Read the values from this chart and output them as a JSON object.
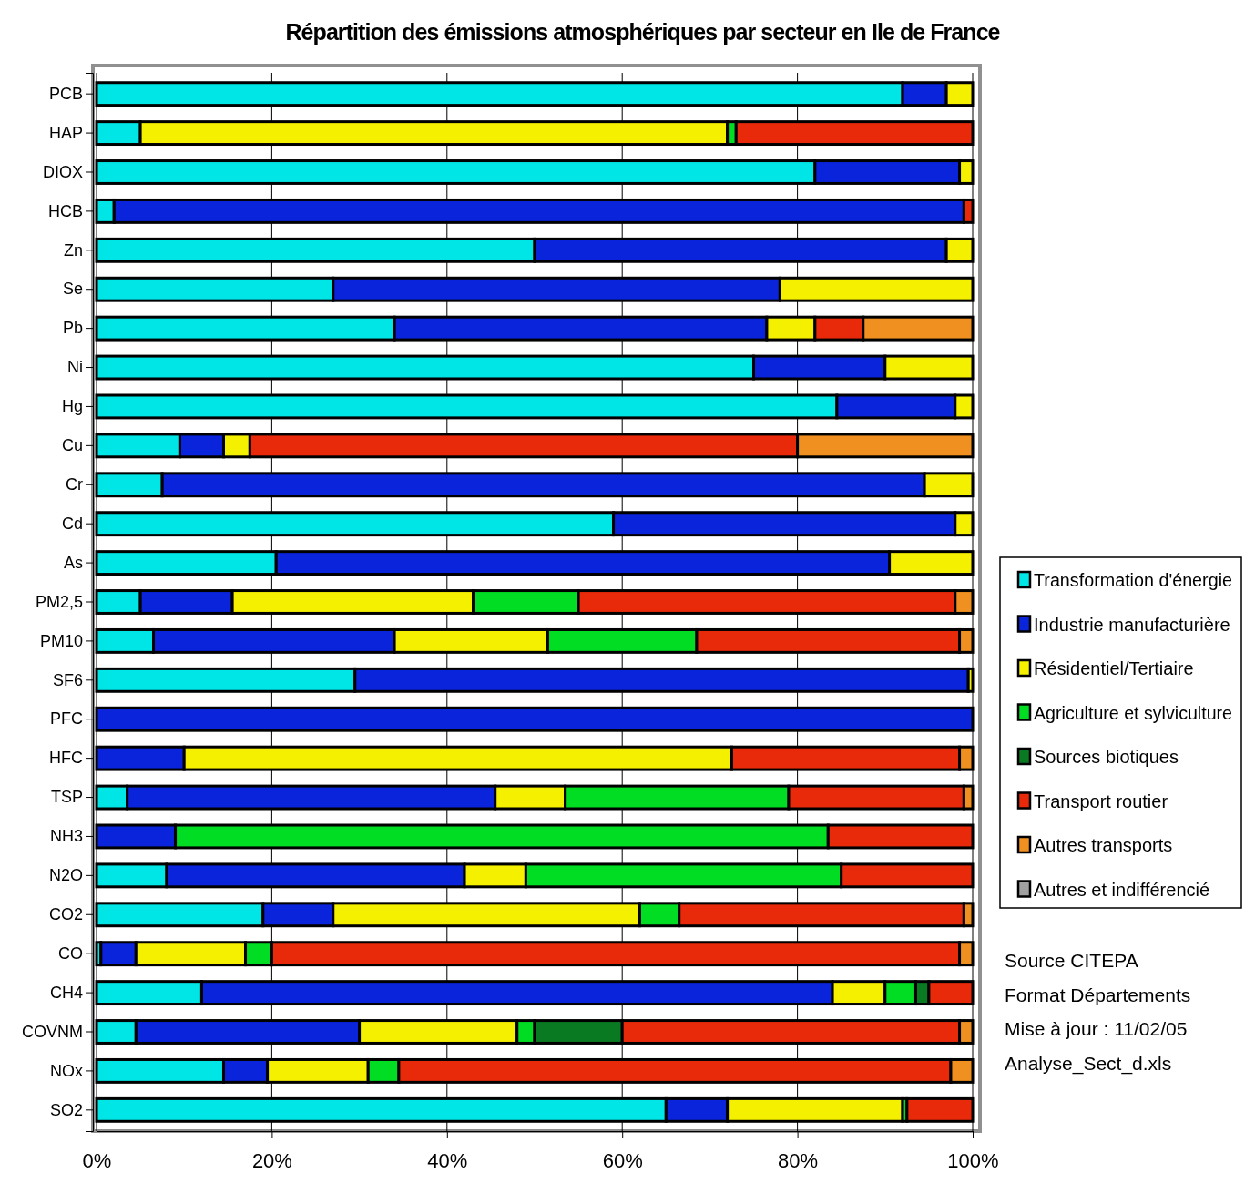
{
  "chart_data": {
    "type": "bar",
    "orientation": "horizontal",
    "stacked": true,
    "title": "Répartition des émissions atmosphériques par secteur en Ile de France",
    "categories": [
      "PCB",
      "HAP",
      "DIOX",
      "HCB",
      "Zn",
      "Se",
      "Pb",
      "Ni",
      "Hg",
      "Cu",
      "Cr",
      "Cd",
      "As",
      "PM2,5",
      "PM10",
      "SF6",
      "PFC",
      "HFC",
      "TSP",
      "NH3",
      "N2O",
      "CO2",
      "CO",
      "CH4",
      "COVNM",
      "NOx",
      "SO2"
    ],
    "series": [
      {
        "name": "Transformation d'énergie",
        "color": "#00e5e5",
        "values": [
          92,
          5,
          82,
          2,
          50,
          27,
          34,
          75,
          84.5,
          9.5,
          7.5,
          59,
          20.5,
          5,
          6.5,
          29.5,
          null,
          null,
          3.5,
          null,
          8,
          19,
          0.5,
          12,
          4.5,
          14.5,
          65
        ]
      },
      {
        "name": "Industrie manufacturière",
        "color": "#0a24dc",
        "values": [
          5,
          null,
          16.5,
          97,
          47,
          51,
          42.5,
          15,
          13.5,
          5,
          87,
          39,
          70,
          10.5,
          27.5,
          70,
          100,
          10,
          42,
          9,
          34,
          8,
          4,
          72,
          25.5,
          5,
          7
        ]
      },
      {
        "name": "Résidentiel/Tertiaire",
        "color": "#f5f000",
        "values": [
          3,
          67,
          1.5,
          null,
          3,
          22,
          5.5,
          10,
          2,
          3,
          5.5,
          2,
          9.5,
          27.5,
          17.5,
          0.5,
          null,
          62.5,
          8,
          null,
          7,
          35,
          12.5,
          6,
          18,
          11.5,
          20
        ]
      },
      {
        "name": "Agriculture et sylviculture",
        "color": "#00dd22",
        "values": [
          null,
          1,
          null,
          null,
          null,
          null,
          null,
          null,
          null,
          null,
          null,
          null,
          null,
          12,
          17,
          null,
          null,
          null,
          25.5,
          74.5,
          36,
          4.5,
          3,
          3.5,
          2,
          3.5,
          0.5
        ]
      },
      {
        "name": "Sources biotiques",
        "color": "#0a7a22",
        "values": [
          null,
          null,
          null,
          null,
          null,
          null,
          null,
          null,
          null,
          null,
          null,
          null,
          null,
          null,
          null,
          null,
          null,
          null,
          null,
          null,
          null,
          null,
          null,
          1.5,
          10,
          null,
          null
        ]
      },
      {
        "name": "Transport routier",
        "color": "#e82a0a",
        "values": [
          null,
          27,
          null,
          1,
          null,
          null,
          5.5,
          null,
          null,
          62.5,
          null,
          null,
          null,
          43,
          30,
          null,
          null,
          26,
          20,
          16.5,
          15,
          32.5,
          78.5,
          5,
          38.5,
          63,
          7.5
        ]
      },
      {
        "name": "Autres transports",
        "color": "#f09020",
        "values": [
          null,
          null,
          null,
          null,
          null,
          null,
          12.5,
          null,
          null,
          20,
          null,
          null,
          null,
          2,
          1.5,
          null,
          null,
          1.5,
          1,
          null,
          null,
          1,
          1.5,
          null,
          1.5,
          2.5,
          null
        ]
      },
      {
        "name": "Autres et indifférencié",
        "color": "#a0a0a0",
        "values": [
          null,
          null,
          null,
          null,
          null,
          null,
          null,
          null,
          null,
          null,
          null,
          null,
          null,
          null,
          null,
          null,
          null,
          null,
          null,
          null,
          null,
          null,
          null,
          null,
          null,
          null,
          null
        ]
      }
    ],
    "xlim": [
      0,
      100
    ],
    "xticks": [
      {
        "value": 0,
        "label": "0%"
      },
      {
        "value": 20,
        "label": "20%"
      },
      {
        "value": 40,
        "label": "40%"
      },
      {
        "value": 60,
        "label": "60%"
      },
      {
        "value": 80,
        "label": "80%"
      },
      {
        "value": 100,
        "label": "100%"
      }
    ],
    "grid": "x",
    "legend": "right",
    "annotations": [
      "Source CITEPA",
      "Format Départements",
      "Mise à jour : 11/02/05",
      "Analyse_Sect_d.xls"
    ]
  }
}
